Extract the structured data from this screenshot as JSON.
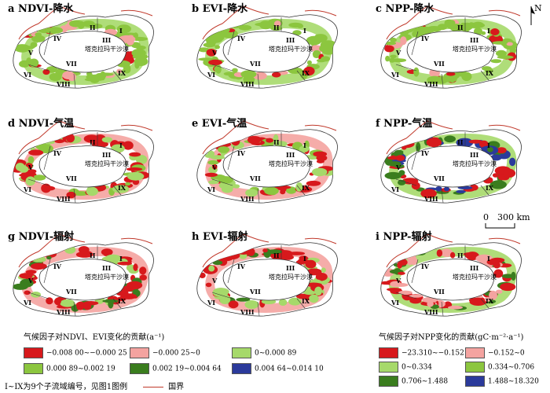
{
  "panels": [
    {
      "title": "a  NDVI-降水",
      "scheme": "precip",
      "desert": "塔克拉玛干沙漠"
    },
    {
      "title": "b  EVI-降水",
      "scheme": "precip",
      "desert": "塔克拉玛干沙漠"
    },
    {
      "title": "c  NPP-降水",
      "scheme": "precip",
      "desert": "塔克拉玛干沙漠"
    },
    {
      "title": "d  NDVI-气温",
      "scheme": "temp",
      "desert": "塔克拉玛干沙漠"
    },
    {
      "title": "e  EVI-气温",
      "scheme": "temp",
      "desert": "塔克拉玛干沙漠"
    },
    {
      "title": "f  NPP-气温",
      "scheme": "nppTemp",
      "desert": "塔克拉玛干沙漠"
    },
    {
      "title": "g  NDVI-辐射",
      "scheme": "rad",
      "desert": "塔克拉玛干沙漠"
    },
    {
      "title": "h  EVI-辐射",
      "scheme": "rad",
      "desert": "塔克拉玛干沙漠"
    },
    {
      "title": "i  NPP-辐射",
      "scheme": "nppRad",
      "desert": "塔克拉玛干沙漠"
    }
  ],
  "basin_labels": [
    "I",
    "II",
    "III",
    "IV",
    "V",
    "VI",
    "VII",
    "VIII",
    "IX"
  ],
  "north_label": "N",
  "scale": {
    "zero": "0",
    "dist": "300 km"
  },
  "legend_left": {
    "title": "气候因子对NDVI、EVI变化的贡献(a⁻¹)",
    "items": [
      {
        "label": "−0.008 00~−0.000 25",
        "color": "#d7191c"
      },
      {
        "label": "−0.000 25~0",
        "color": "#f4a3a0"
      },
      {
        "label": "0~0.000 89",
        "color": "#a6d96a"
      },
      {
        "label": "0.000 89~0.002 19",
        "color": "#8cc63f"
      },
      {
        "label": "0.002 19~0.004 64",
        "color": "#3a7d1e"
      },
      {
        "label": "0.004 64~0.014 10",
        "color": "#2b3a9b"
      }
    ]
  },
  "legend_right": {
    "title": "气候因子对NPP变化的贡献(gC·m⁻²·a⁻¹)",
    "items": [
      {
        "label": "−23.310~−0.152",
        "color": "#d7191c"
      },
      {
        "label": "−0.152~0",
        "color": "#f4a3a0"
      },
      {
        "label": "0~0.334",
        "color": "#a6d96a"
      },
      {
        "label": "0.334~0.706",
        "color": "#8cc63f"
      },
      {
        "label": "0.706~1.488",
        "color": "#3a7d1e"
      },
      {
        "label": "1.488~18.320",
        "color": "#2b3a9b"
      }
    ]
  },
  "note": {
    "text": "I~IX为9个子流域编号，见图1图例",
    "boundary": "国界"
  }
}
